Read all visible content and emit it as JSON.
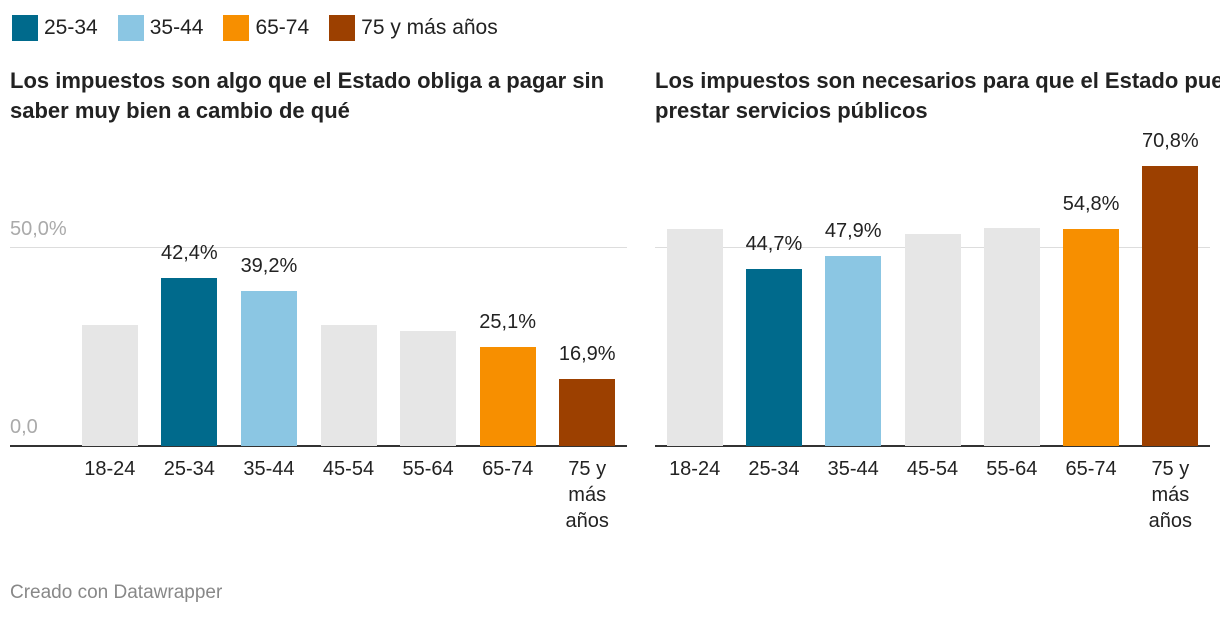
{
  "legend": {
    "series": [
      {
        "name": "25-34",
        "color": "#006a8c"
      },
      {
        "name": "35-44",
        "color": "#8bc6e3"
      },
      {
        "name": "65-74",
        "color": "#f78f00"
      },
      {
        "name": "75 y más años",
        "color": "#9c4000"
      }
    ]
  },
  "chart_data": [
    {
      "type": "bar",
      "title": "Los impuestos son algo que el Estado obliga a pagar sin saber muy bien a cambio de qué",
      "categories": [
        "18-24",
        "25-34",
        "35-44",
        "45-54",
        "55-64",
        "65-74",
        "75 y más años"
      ],
      "values": [
        30.5,
        42.4,
        39.2,
        30.5,
        29.0,
        25.1,
        16.9
      ],
      "value_labels": [
        null,
        "42,4%",
        "39,2%",
        null,
        null,
        "25,1%",
        "16,9%"
      ],
      "colors": [
        "#e6e6e6",
        "#006a8c",
        "#8bc6e3",
        "#e6e6e6",
        "#e6e6e6",
        "#f78f00",
        "#9c4000"
      ],
      "ylim": [
        0,
        71
      ],
      "yticks": [
        {
          "value": 0,
          "label": "0,0"
        },
        {
          "value": 50,
          "label": "50,0%"
        }
      ],
      "show_tick_labels": true,
      "grid": true
    },
    {
      "type": "bar",
      "title": "Los impuestos son necesarios para que el Estado pueda prestar servicios públicos",
      "categories": [
        "18-24",
        "25-34",
        "35-44",
        "45-54",
        "55-64",
        "65-74",
        "75 y más años"
      ],
      "values": [
        54.8,
        44.7,
        47.9,
        53.5,
        55.0,
        54.8,
        70.8
      ],
      "value_labels": [
        null,
        "44,7%",
        "47,9%",
        null,
        null,
        "54,8%",
        "70,8%"
      ],
      "colors": [
        "#e6e6e6",
        "#006a8c",
        "#8bc6e3",
        "#e6e6e6",
        "#e6e6e6",
        "#f78f00",
        "#9c4000"
      ],
      "ylim": [
        0,
        71
      ],
      "yticks": [
        0,
        50
      ],
      "show_tick_labels": false,
      "grid": true
    }
  ],
  "footer": "Creado con Datawrapper"
}
